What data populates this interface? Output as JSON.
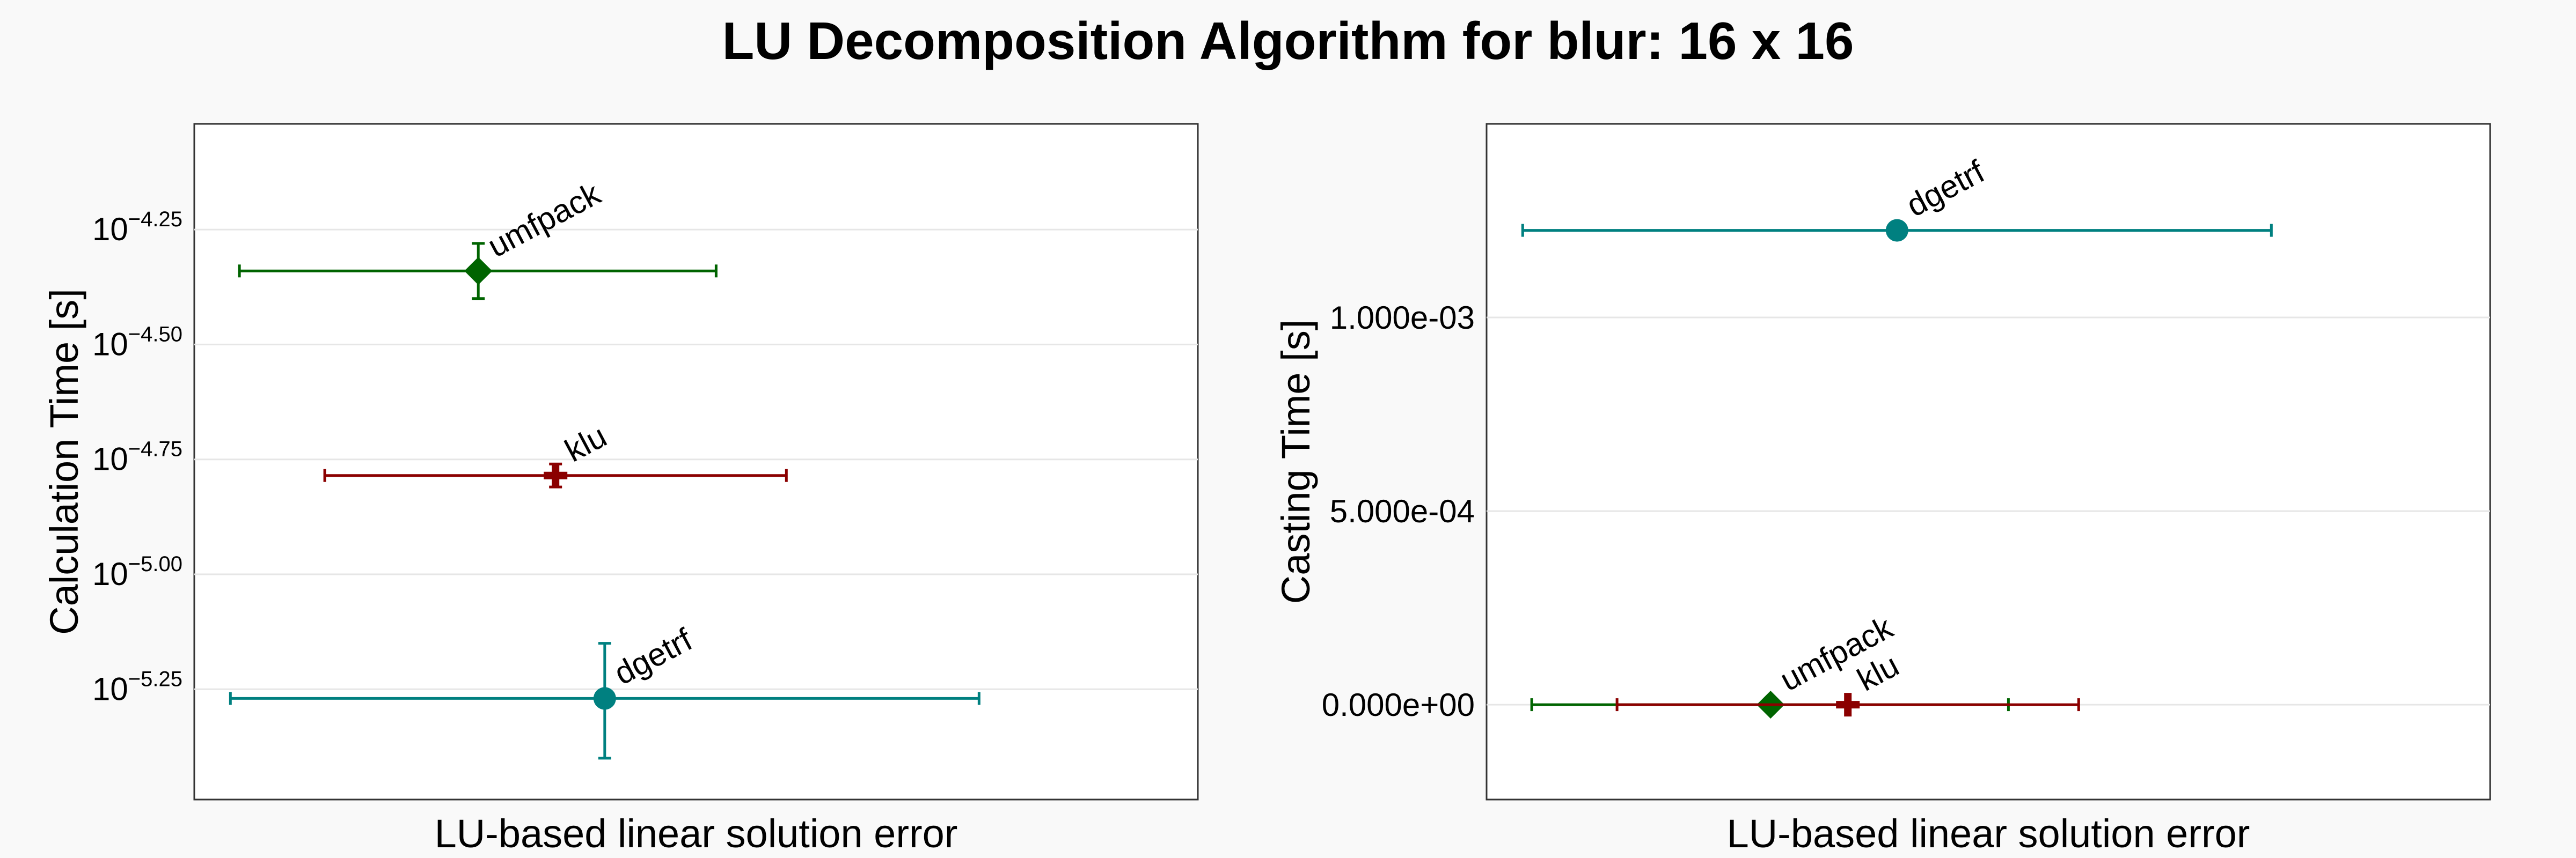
{
  "figure": {
    "title": "LU Decomposition Algorithm for blur: 16 x 16"
  },
  "chart_data": [
    {
      "type": "scatter",
      "panel": "left",
      "xlabel": "LU-based linear solution error",
      "ylabel": "Calculation Time [s]",
      "y_scale": "log10",
      "ylim_log10": [
        -5.49,
        -4.02
      ],
      "y_ticks_log10": [
        "-4.25",
        "-4.50",
        "-4.75",
        "-5.00",
        "-5.25"
      ],
      "x_ticks": [],
      "grid": "horizontal",
      "xlim": [
        0,
        1
      ],
      "series": [
        {
          "label": "umfpack",
          "marker": "diamond",
          "color": "#006400",
          "x": 0.283,
          "x_err": [
            0.045,
            0.52
          ],
          "y_log10": -4.34,
          "y_err_log10": [
            -4.4,
            -4.28
          ]
        },
        {
          "label": "klu",
          "marker": "cross",
          "color": "#8b0000",
          "x": 0.36,
          "x_err": [
            0.13,
            0.59
          ],
          "y_log10": -4.785,
          "y_err_log10": [
            -4.81,
            -4.76
          ]
        },
        {
          "label": "dgetrf",
          "marker": "circle",
          "color": "#008080",
          "x": 0.409,
          "x_err": [
            0.036,
            0.782
          ],
          "y_log10": -5.27,
          "y_err_log10": [
            -5.4,
            -5.15
          ]
        }
      ]
    },
    {
      "type": "scatter",
      "panel": "right",
      "xlabel": "LU-based linear solution error",
      "ylabel": "Casting Time [s]",
      "y_scale": "linear",
      "ylim": [
        -0.000245,
        0.0015
      ],
      "y_ticks": [
        "0.000e+00",
        "5.000e-04",
        "1.000e-03"
      ],
      "y_tick_values": [
        0,
        0.0005,
        0.001
      ],
      "x_ticks": [],
      "grid": "horizontal",
      "xlim": [
        0,
        1
      ],
      "series": [
        {
          "label": "dgetrf",
          "marker": "circle",
          "color": "#008080",
          "x": 0.409,
          "x_err": [
            0.036,
            0.782
          ],
          "y": 0.001225,
          "y_err": [
            0.001225,
            0.001225
          ]
        },
        {
          "label": "umfpack",
          "marker": "diamond",
          "color": "#006400",
          "x": 0.283,
          "x_err": [
            0.045,
            0.52
          ],
          "y": 0.0,
          "y_err": [
            0.0,
            0.0
          ]
        },
        {
          "label": "klu",
          "marker": "cross",
          "color": "#8b0000",
          "x": 0.36,
          "x_err": [
            0.13,
            0.59
          ],
          "y": 0.0,
          "y_err": [
            0.0,
            0.0
          ]
        }
      ]
    }
  ]
}
